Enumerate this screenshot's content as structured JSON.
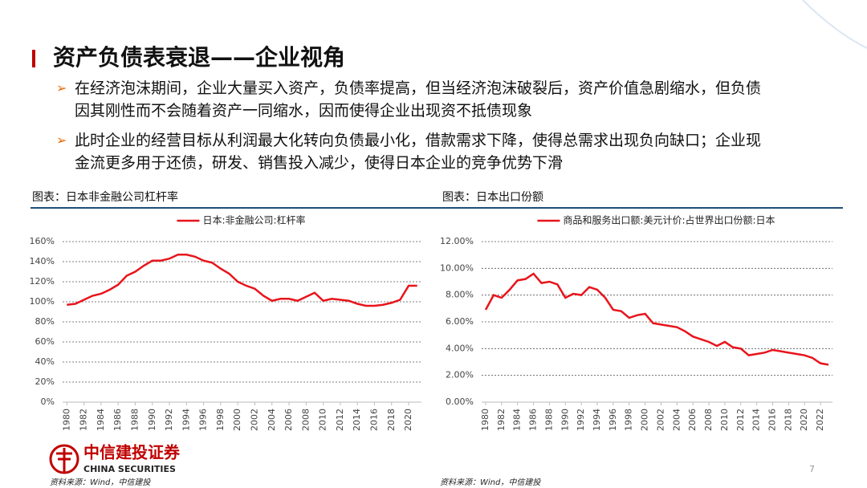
{
  "title": "资产负债表衰退——企业视角",
  "bullets": [
    [
      "在经济泡沫期间，企业大量买入资产，负债率提高，但当经济泡沫破裂后，资产价值急剧缩水，但负债",
      "因其刚性而不会随着资产一同缩水，因而使得企业出现资不抵债现象"
    ],
    [
      "此时企业的经营目标从利润最大化转向负债最小化，借款需求下降，使得总需求出现负向缺口；企业现",
      "金流更多用于还债，研发、销售投入减少，使得日本企业的竞争优势下滑"
    ]
  ],
  "chart_data": [
    {
      "type": "line",
      "caption": "图表：日本非金融公司杠杆率",
      "x": [
        1980,
        1981,
        1982,
        1983,
        1984,
        1985,
        1986,
        1987,
        1988,
        1989,
        1990,
        1991,
        1992,
        1993,
        1994,
        1995,
        1996,
        1997,
        1998,
        1999,
        2000,
        2001,
        2002,
        2003,
        2004,
        2005,
        2006,
        2007,
        2008,
        2009,
        2010,
        2011,
        2012,
        2013,
        2014,
        2015,
        2016,
        2017,
        2018,
        2019,
        2020,
        2021
      ],
      "series": [
        {
          "name": "日本:非金融公司:杠杆率",
          "color": "#e8141b",
          "values": [
            97,
            98,
            102,
            106,
            108,
            112,
            117,
            126,
            130,
            136,
            141,
            141,
            143,
            147,
            147,
            145,
            141,
            139,
            133,
            128,
            120,
            116,
            113,
            106,
            101,
            103,
            103,
            101,
            105,
            109,
            101,
            103,
            102,
            101,
            98,
            96,
            96,
            97,
            99,
            102,
            116,
            116
          ]
        }
      ],
      "xlim": [
        1979.5,
        2021.5
      ],
      "xticks": [
        1980,
        1982,
        1984,
        1986,
        1988,
        1990,
        1992,
        1994,
        1996,
        1998,
        2000,
        2002,
        2004,
        2006,
        2008,
        2010,
        2012,
        2014,
        2016,
        2018,
        2020
      ],
      "ylim": [
        0,
        160
      ],
      "yticks": [
        {
          "value": 0,
          "label": "0%"
        },
        {
          "value": 20,
          "label": "20%"
        },
        {
          "value": 40,
          "label": "40%"
        },
        {
          "value": 60,
          "label": "60%"
        },
        {
          "value": 80,
          "label": "80%"
        },
        {
          "value": 100,
          "label": "100%"
        },
        {
          "value": 120,
          "label": "120%"
        },
        {
          "value": 140,
          "label": "140%"
        },
        {
          "value": 160,
          "label": "160%"
        }
      ],
      "grid": true,
      "legend": "top"
    },
    {
      "type": "line",
      "caption": "图表：日本出口份额",
      "x": [
        1980,
        1981,
        1982,
        1983,
        1984,
        1985,
        1986,
        1987,
        1988,
        1989,
        1990,
        1991,
        1992,
        1993,
        1994,
        1995,
        1996,
        1997,
        1998,
        1999,
        2000,
        2001,
        2002,
        2003,
        2004,
        2005,
        2006,
        2007,
        2008,
        2009,
        2010,
        2011,
        2012,
        2013,
        2014,
        2015,
        2016,
        2017,
        2018,
        2019,
        2020,
        2021,
        2022,
        2023
      ],
      "series": [
        {
          "name": "商品和服务出口额:美元计价:占世界出口份额:日本",
          "color": "#e8141b",
          "values": [
            6.9,
            8.0,
            7.8,
            8.4,
            9.1,
            9.2,
            9.6,
            8.9,
            9.0,
            8.8,
            7.8,
            8.1,
            8.0,
            8.6,
            8.4,
            7.8,
            6.9,
            6.8,
            6.3,
            6.5,
            6.6,
            5.9,
            5.8,
            5.7,
            5.6,
            5.3,
            4.9,
            4.7,
            4.5,
            4.2,
            4.5,
            4.1,
            4.0,
            3.5,
            3.6,
            3.7,
            3.9,
            3.8,
            3.7,
            3.6,
            3.5,
            3.3,
            2.9,
            2.8
          ]
        }
      ],
      "xlim": [
        1979.5,
        2023.5
      ],
      "xticks": [
        1980,
        1982,
        1984,
        1986,
        1988,
        1990,
        1992,
        1994,
        1996,
        1998,
        2000,
        2002,
        2004,
        2006,
        2008,
        2010,
        2012,
        2014,
        2016,
        2018,
        2020,
        2022
      ],
      "ylim": [
        0,
        12
      ],
      "yticks": [
        {
          "value": 0,
          "label": "0.00%"
        },
        {
          "value": 2,
          "label": "2.00%"
        },
        {
          "value": 4,
          "label": "4.00%"
        },
        {
          "value": 6,
          "label": "6.00%"
        },
        {
          "value": 8,
          "label": "8.00%"
        },
        {
          "value": 10,
          "label": "10.00%"
        },
        {
          "value": 12,
          "label": "12.00%"
        }
      ],
      "grid": true,
      "legend": "top"
    }
  ],
  "logo": {
    "name": "中信建投证券",
    "name_en": "CHINA SECURITIES"
  },
  "page_number": "7",
  "sources": [
    "资料来源：Wind，中信建投",
    "资料来源：Wind，中信建投"
  ]
}
